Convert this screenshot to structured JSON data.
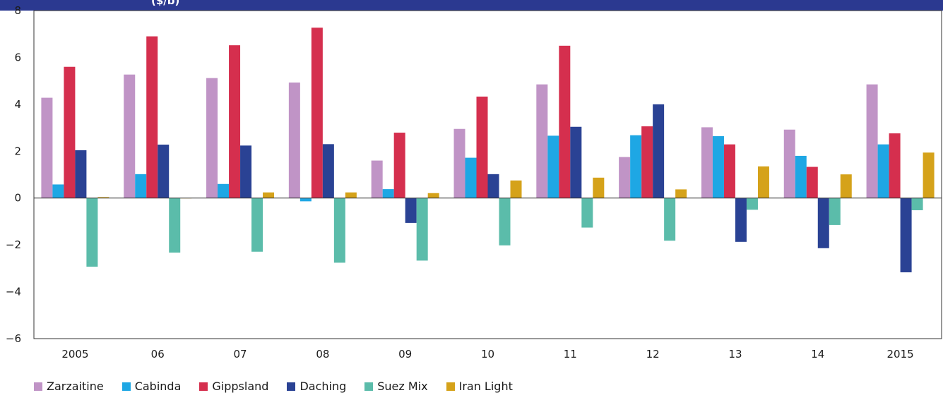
{
  "chart_data": {
    "type": "bar",
    "title": "($/b)",
    "categories": [
      "2005",
      "06",
      "07",
      "08",
      "09",
      "10",
      "11",
      "12",
      "13",
      "14",
      "2015"
    ],
    "ylim": [
      -6,
      8
    ],
    "yticks": [
      -6,
      -4,
      -2,
      0,
      2,
      4,
      6,
      8
    ],
    "grid": false,
    "legend_position": "bottom",
    "series": [
      {
        "name": "Zarzaitine",
        "color": "#c094c6",
        "values": [
          4.28,
          5.27,
          5.12,
          4.93,
          1.6,
          2.95,
          4.85,
          1.75,
          3.02,
          2.92,
          4.85
        ]
      },
      {
        "name": "Cabinda",
        "color": "#1ea7e4",
        "values": [
          0.58,
          1.02,
          0.6,
          -0.14,
          0.38,
          1.72,
          2.66,
          2.68,
          2.64,
          1.8,
          2.29
        ]
      },
      {
        "name": "Gippsland",
        "color": "#d52f4e",
        "values": [
          5.6,
          6.9,
          6.52,
          7.27,
          2.79,
          4.33,
          6.5,
          3.06,
          2.29,
          1.33,
          2.76
        ]
      },
      {
        "name": "Daching",
        "color": "#2a4294",
        "values": [
          2.04,
          2.28,
          2.24,
          2.3,
          -1.06,
          1.02,
          3.04,
          4.0,
          -1.87,
          -2.14,
          -3.17
        ]
      },
      {
        "name": "Suez Mix",
        "color": "#5bbcaa",
        "values": [
          -2.93,
          -2.33,
          -2.29,
          -2.76,
          -2.67,
          -2.02,
          -1.26,
          -1.82,
          -0.5,
          -1.15,
          -0.52
        ]
      },
      {
        "name": "Iran Light",
        "color": "#d5a21a",
        "values": [
          0.04,
          0.0,
          0.24,
          0.24,
          0.21,
          0.75,
          0.87,
          0.37,
          1.35,
          1.01,
          1.94
        ]
      }
    ],
    "tick_labels": [
      "8",
      "6",
      "4",
      "2",
      "0",
      "−2",
      "−4",
      "−6"
    ]
  },
  "colors": {
    "title_bar": "#2b3990",
    "axis": "#333333"
  }
}
